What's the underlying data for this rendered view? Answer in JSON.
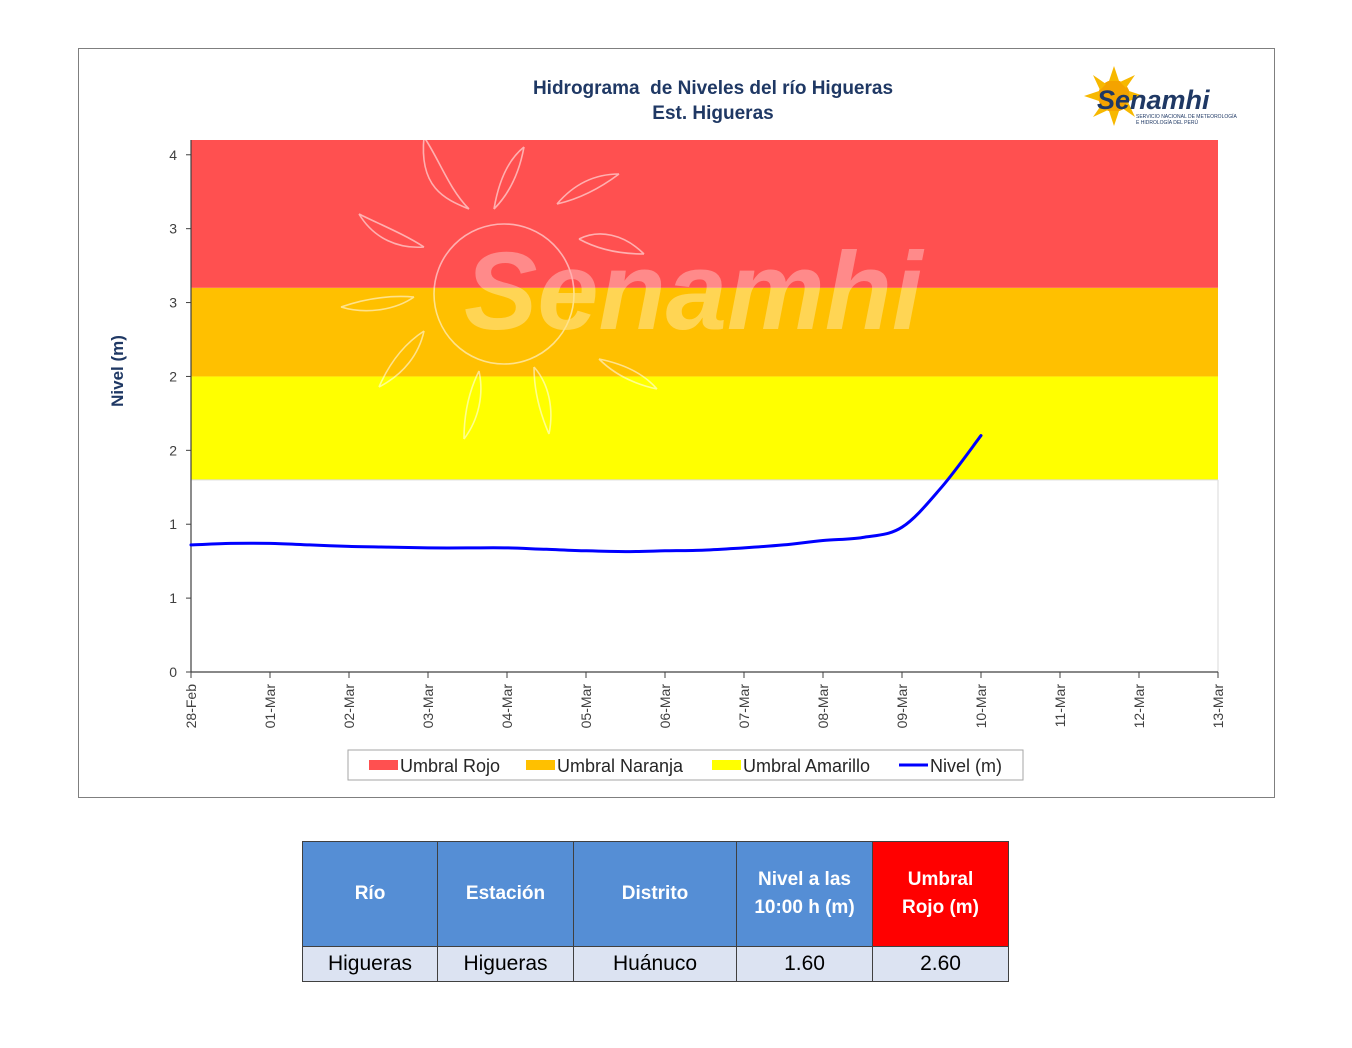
{
  "logo": {
    "text": "Senamhi",
    "subtitle_line1": "SERVICIO NACIONAL DE METEOROLOGÍA",
    "subtitle_line2": "E HIDROLOGÍA DEL PERÚ"
  },
  "watermark": {
    "text": "Senamhi"
  },
  "chart_data": {
    "type": "line",
    "title": "Hidrograma  de Niveles del río Higueras",
    "subtitle": "Est. Higueras",
    "ylabel": "Nivel (m)",
    "xlabel": "",
    "ylim": [
      0,
      3.6
    ],
    "y_tick_values": [
      0,
      0.5,
      1,
      1.5,
      2,
      2.5,
      3,
      3.5
    ],
    "y_tick_labels": [
      "0",
      "1",
      "1",
      "2",
      "2",
      "3",
      "3",
      "4"
    ],
    "x_tick_labels": [
      "28-Feb",
      "01-Mar",
      "02-Mar",
      "03-Mar",
      "04-Mar",
      "05-Mar",
      "06-Mar",
      "07-Mar",
      "08-Mar",
      "09-Mar",
      "10-Mar",
      "11-Mar",
      "12-Mar",
      "13-Mar"
    ],
    "thresholds": [
      {
        "name": "Umbral Amarillo",
        "from": 1.3,
        "to": 2.0,
        "color": "#ffff00"
      },
      {
        "name": "Umbral Naranja",
        "from": 2.0,
        "to": 2.6,
        "color": "#ffc000"
      },
      {
        "name": "Umbral Rojo",
        "from": 2.6,
        "to": 3.6,
        "color": "#ff5050"
      }
    ],
    "series": [
      {
        "name": "Nivel (m)",
        "color": "#0000ff",
        "x": [
          0,
          0.5,
          1,
          1.5,
          2,
          2.5,
          3,
          3.5,
          4,
          4.5,
          5,
          5.5,
          6,
          6.5,
          7,
          7.5,
          8,
          8.5,
          9,
          9.5,
          10
        ],
        "values": [
          0.86,
          0.87,
          0.87,
          0.86,
          0.85,
          0.845,
          0.84,
          0.84,
          0.84,
          0.83,
          0.82,
          0.815,
          0.82,
          0.825,
          0.84,
          0.86,
          0.89,
          0.91,
          0.98,
          1.25,
          1.6
        ]
      }
    ],
    "legend": {
      "position": "bottom",
      "entries": [
        {
          "label": "Umbral Rojo",
          "color": "#ff5050",
          "kind": "box"
        },
        {
          "label": "Umbral Naranja",
          "color": "#ffc000",
          "kind": "box"
        },
        {
          "label": "Umbral Amarillo",
          "color": "#ffff00",
          "kind": "box"
        },
        {
          "label": "Nivel (m)",
          "color": "#0000ff",
          "kind": "line"
        }
      ]
    },
    "grid": false
  },
  "table": {
    "headers": [
      {
        "line1": "Río",
        "line2": ""
      },
      {
        "line1": "Estación",
        "line2": ""
      },
      {
        "line1": "Distrito",
        "line2": ""
      },
      {
        "line1": "Nivel a las",
        "line2": "10:00 h (m)"
      },
      {
        "line1": "Umbral",
        "line2": "Rojo (m)"
      }
    ],
    "row": [
      "Higueras",
      "Higueras",
      "Huánuco",
      "1.60",
      "2.60"
    ],
    "header_color": "#558ed5",
    "header_red_color": "#ff0000"
  }
}
